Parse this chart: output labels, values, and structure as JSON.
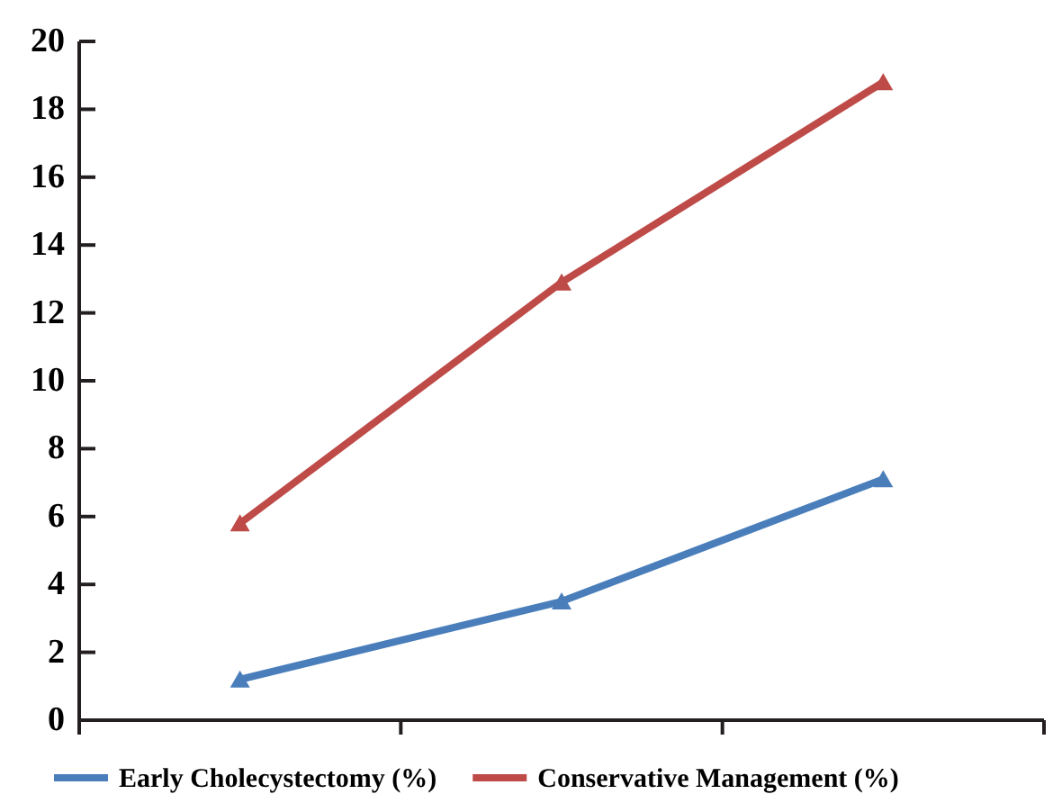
{
  "chart_data": {
    "type": "line",
    "categories": [
      null,
      null,
      null
    ],
    "series": [
      {
        "name": "Early Cholecystectomy (%)",
        "color": "#4a7ebb",
        "values": [
          1.2,
          3.5,
          7.1
        ]
      },
      {
        "name": "Conservative Management (%)",
        "color": "#be4b48",
        "values": [
          5.8,
          12.9,
          18.8
        ]
      }
    ],
    "ylim": [
      0,
      20
    ],
    "yticks": [
      0,
      2,
      4,
      6,
      8,
      10,
      12,
      14,
      16,
      18,
      20
    ],
    "grid": false,
    "legend": "bottom",
    "marker": "triangle",
    "line_style": "solid"
  }
}
